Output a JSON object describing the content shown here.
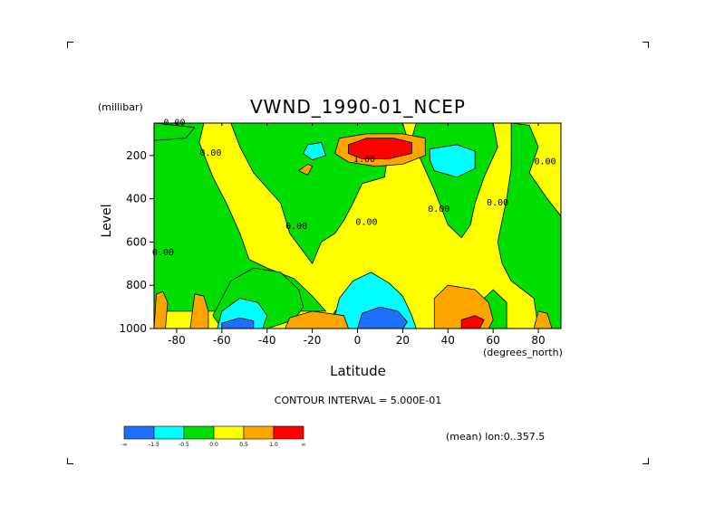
{
  "chart_data": {
    "type": "heatmap",
    "title": "VWND_1990-01_NCEP",
    "ylabel": "Level",
    "yunit": "(millibar)",
    "xlabel": "Latitude",
    "xunit": "(degrees_north)",
    "xlim": [
      -90,
      90
    ],
    "ylim": [
      1000,
      50
    ],
    "x_ticks": [
      "-80",
      "-60",
      "-40",
      "-20",
      "0",
      "20",
      "40",
      "60",
      "80"
    ],
    "x_tick_values": [
      -80,
      -60,
      -40,
      -20,
      0,
      20,
      40,
      60,
      80
    ],
    "y_ticks": [
      "200",
      "400",
      "600",
      "800",
      "1000"
    ],
    "y_tick_values": [
      200,
      400,
      600,
      800,
      1000
    ],
    "contour_interval_text": "CONTOUR INTERVAL = 5.000E-01",
    "note": "(mean) lon:0..357.5",
    "colorbar": {
      "colors": [
        "#1f6fff",
        "#00ffff",
        "#00dd00",
        "#ffff00",
        "#ffa500",
        "#ff0000"
      ],
      "labels": [
        "-∞",
        "-1.5",
        "-0.5",
        "0.0",
        "0.5",
        "1.0",
        "∞"
      ]
    },
    "contour_labels": [
      {
        "text": "0.00",
        "lat": -81,
        "lev": 60
      },
      {
        "text": "0.00",
        "lat": -65,
        "lev": 200
      },
      {
        "text": "0.00",
        "lat": -86,
        "lev": 660
      },
      {
        "text": "0.00",
        "lat": -27,
        "lev": 540
      },
      {
        "text": "0.00",
        "lat": 4,
        "lev": 520
      },
      {
        "text": "1.00",
        "lat": 3,
        "lev": 230
      },
      {
        "text": "0.00",
        "lat": 36,
        "lev": 460
      },
      {
        "text": "0.00",
        "lat": 62,
        "lev": 430
      },
      {
        "text": "0.00",
        "lat": 83,
        "lev": 240
      }
    ],
    "regions": [
      {
        "color": "#00dd00",
        "pts": [
          [
            -90,
            50
          ],
          [
            -68,
            50
          ],
          [
            -70,
            140
          ],
          [
            -64,
            300
          ],
          [
            -58,
            420
          ],
          [
            -52,
            560
          ],
          [
            -48,
            680
          ],
          [
            -40,
            720
          ],
          [
            -28,
            770
          ],
          [
            -20,
            850
          ],
          [
            -14,
            920
          ],
          [
            -90,
            920
          ]
        ]
      },
      {
        "color": "#00dd00",
        "pts": [
          [
            -56,
            50
          ],
          [
            20,
            50
          ],
          [
            22,
            120
          ],
          [
            14,
            150
          ],
          [
            12,
            300
          ],
          [
            2,
            330
          ],
          [
            -2,
            420
          ],
          [
            -6,
            500
          ],
          [
            -10,
            560
          ],
          [
            -16,
            600
          ],
          [
            -20,
            700
          ],
          [
            -30,
            560
          ],
          [
            -34,
            420
          ],
          [
            -46,
            280
          ],
          [
            -52,
            160
          ]
        ]
      },
      {
        "color": "#00dd00",
        "pts": [
          [
            26,
            50
          ],
          [
            60,
            50
          ],
          [
            62,
            160
          ],
          [
            56,
            300
          ],
          [
            52,
            420
          ],
          [
            50,
            520
          ],
          [
            46,
            580
          ],
          [
            40,
            520
          ],
          [
            34,
            360
          ],
          [
            28,
            220
          ],
          [
            24,
            120
          ]
        ]
      },
      {
        "color": "#00dd00",
        "pts": [
          [
            68,
            50
          ],
          [
            76,
            60
          ],
          [
            80,
            160
          ],
          [
            76,
            280
          ],
          [
            84,
            400
          ],
          [
            90,
            480
          ],
          [
            90,
            1000
          ],
          [
            80,
            1000
          ],
          [
            78,
            860
          ],
          [
            68,
            780
          ],
          [
            64,
            700
          ],
          [
            62,
            600
          ],
          [
            66,
            400
          ],
          [
            68,
            260
          ]
        ]
      },
      {
        "color": "#00dd00",
        "pts": [
          [
            -56,
            780
          ],
          [
            -46,
            720
          ],
          [
            -34,
            740
          ],
          [
            -26,
            820
          ],
          [
            -24,
            900
          ],
          [
            -28,
            960
          ],
          [
            -40,
            1000
          ],
          [
            -60,
            1000
          ],
          [
            -64,
            940
          ]
        ]
      },
      {
        "color": "#00dd00",
        "pts": [
          [
            -10,
            920
          ],
          [
            -6,
            880
          ],
          [
            0,
            880
          ],
          [
            0,
            1000
          ],
          [
            -14,
            1000
          ]
        ]
      },
      {
        "color": "#00dd00",
        "pts": [
          [
            52,
            900
          ],
          [
            60,
            820
          ],
          [
            66,
            880
          ],
          [
            66,
            1000
          ],
          [
            54,
            1000
          ]
        ]
      },
      {
        "color": "#00dd00",
        "pts": [
          [
            -90,
            50
          ],
          [
            -90,
            130
          ],
          [
            -76,
            120
          ],
          [
            -72,
            70
          ]
        ]
      },
      {
        "color": "#00ffff",
        "pts": [
          [
            -22,
            150
          ],
          [
            -16,
            140
          ],
          [
            -14,
            200
          ],
          [
            -20,
            220
          ],
          [
            -24,
            190
          ]
        ]
      },
      {
        "color": "#00ffff",
        "pts": [
          [
            32,
            170
          ],
          [
            44,
            150
          ],
          [
            52,
            180
          ],
          [
            52,
            260
          ],
          [
            44,
            300
          ],
          [
            34,
            270
          ],
          [
            32,
            220
          ]
        ]
      },
      {
        "color": "#00ffff",
        "pts": [
          [
            -8,
            860
          ],
          [
            -2,
            780
          ],
          [
            6,
            740
          ],
          [
            14,
            790
          ],
          [
            20,
            850
          ],
          [
            24,
            940
          ],
          [
            26,
            1000
          ],
          [
            -4,
            1000
          ],
          [
            -10,
            940
          ]
        ]
      },
      {
        "color": "#00ffff",
        "pts": [
          [
            -60,
            920
          ],
          [
            -52,
            860
          ],
          [
            -44,
            880
          ],
          [
            -40,
            940
          ],
          [
            -42,
            1000
          ],
          [
            -62,
            1000
          ]
        ]
      },
      {
        "color": "#1f6fff",
        "pts": [
          [
            2,
            930
          ],
          [
            10,
            900
          ],
          [
            18,
            920
          ],
          [
            22,
            970
          ],
          [
            20,
            1000
          ],
          [
            0,
            1000
          ]
        ]
      },
      {
        "color": "#1f6fff",
        "pts": [
          [
            -60,
            975
          ],
          [
            -52,
            950
          ],
          [
            -46,
            965
          ],
          [
            -46,
            1000
          ],
          [
            -60,
            1000
          ]
        ]
      },
      {
        "color": "#ffa500",
        "pts": [
          [
            -8,
            120
          ],
          [
            4,
            100
          ],
          [
            20,
            100
          ],
          [
            30,
            120
          ],
          [
            30,
            200
          ],
          [
            20,
            240
          ],
          [
            8,
            250
          ],
          [
            -4,
            230
          ],
          [
            -10,
            190
          ]
        ]
      },
      {
        "color": "#ffa500",
        "pts": [
          [
            -32,
            1000
          ],
          [
            -30,
            950
          ],
          [
            -20,
            920
          ],
          [
            -6,
            940
          ],
          [
            -4,
            1000
          ]
        ]
      },
      {
        "color": "#ffa500",
        "pts": [
          [
            34,
            860
          ],
          [
            40,
            800
          ],
          [
            52,
            820
          ],
          [
            58,
            880
          ],
          [
            60,
            960
          ],
          [
            58,
            1000
          ],
          [
            34,
            1000
          ]
        ]
      },
      {
        "color": "#ffa500",
        "pts": [
          [
            -89,
            840
          ],
          [
            -86,
            830
          ],
          [
            -84,
            880
          ],
          [
            -85,
            1000
          ],
          [
            -90,
            1000
          ]
        ]
      },
      {
        "color": "#ffa500",
        "pts": [
          [
            -74,
            1000
          ],
          [
            -72,
            840
          ],
          [
            -68,
            850
          ],
          [
            -66,
            920
          ],
          [
            -66,
            1000
          ]
        ]
      },
      {
        "color": "#ffa500",
        "pts": [
          [
            -26,
            270
          ],
          [
            -22,
            240
          ],
          [
            -20,
            250
          ],
          [
            -22,
            290
          ]
        ]
      },
      {
        "color": "#ffa500",
        "pts": [
          [
            80,
            920
          ],
          [
            84,
            930
          ],
          [
            86,
            1000
          ],
          [
            78,
            1000
          ]
        ]
      },
      {
        "color": "#ff0000",
        "pts": [
          [
            -4,
            150
          ],
          [
            4,
            120
          ],
          [
            16,
            120
          ],
          [
            24,
            140
          ],
          [
            24,
            190
          ],
          [
            14,
            215
          ],
          [
            2,
            215
          ],
          [
            -4,
            190
          ]
        ]
      },
      {
        "color": "#ff0000",
        "pts": [
          [
            46,
            960
          ],
          [
            52,
            940
          ],
          [
            56,
            960
          ],
          [
            54,
            1000
          ],
          [
            46,
            1000
          ]
        ]
      }
    ]
  }
}
